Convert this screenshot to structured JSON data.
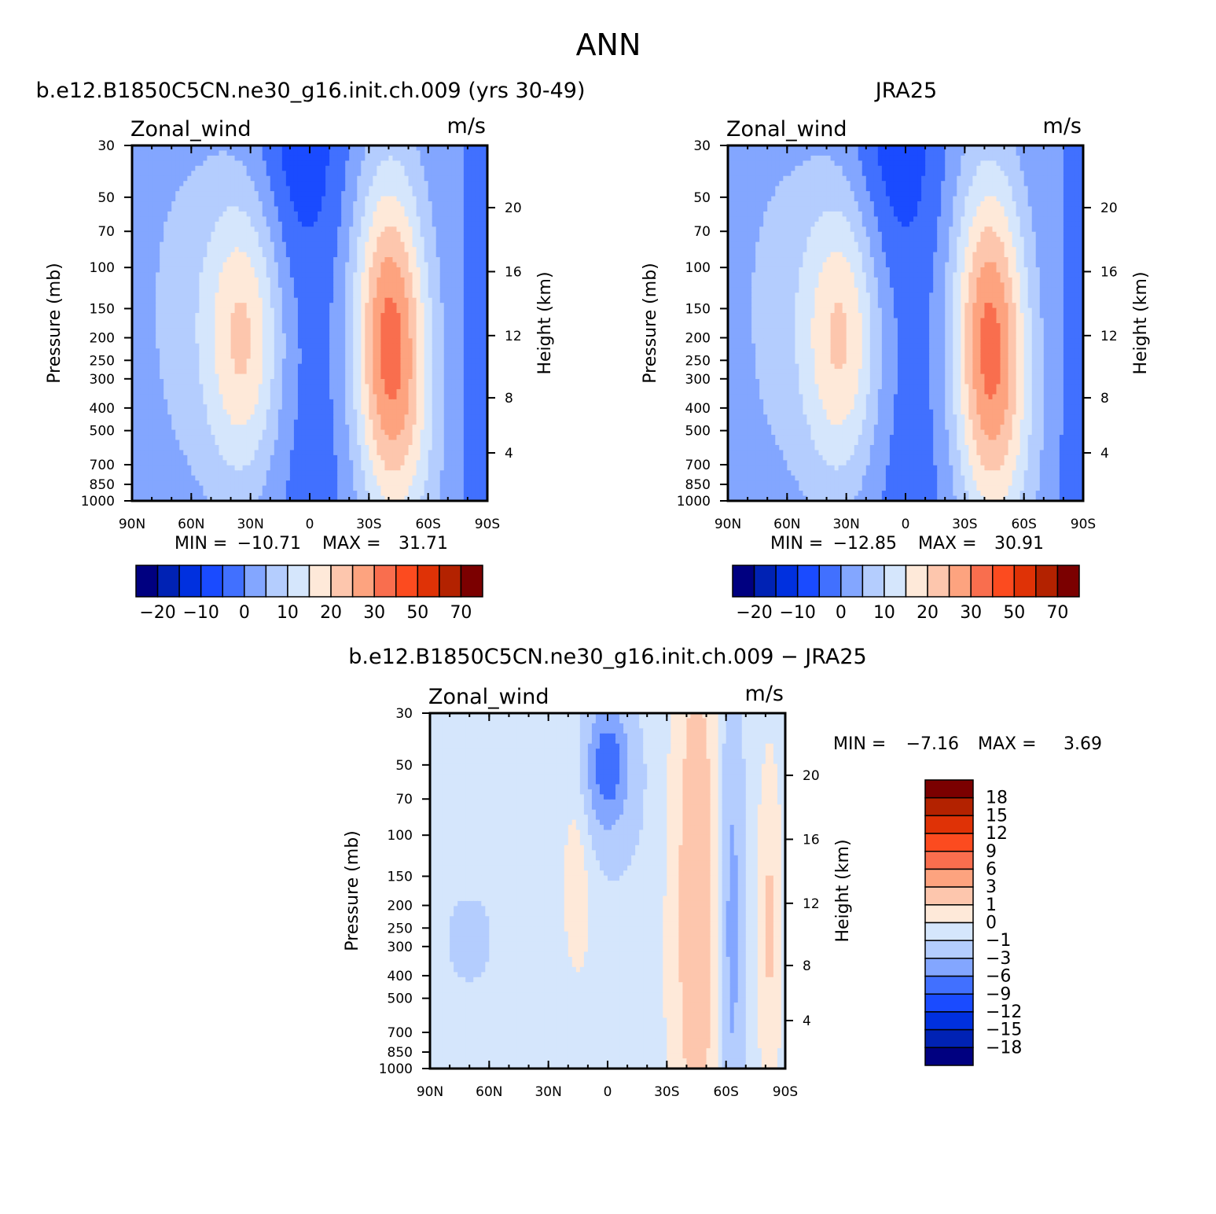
{
  "title": "ANN",
  "colors": {
    "full_palette": [
      "#000080",
      "#0022b4",
      "#0030df",
      "#1a4bff",
      "#4170ff",
      "#83a6ff",
      "#b4cdfe",
      "#d5e6fc",
      "#fee9d9",
      "#fdc6ad",
      "#fda37f",
      "#f96e4e",
      "#fc4b1f",
      "#df3206",
      "#b32200",
      "#7b0000"
    ],
    "diff_palette": [
      "#000080",
      "#0022b4",
      "#0030df",
      "#1a4bff",
      "#4170ff",
      "#83a6ff",
      "#b4cdfe",
      "#d5e6fc",
      "#fee9d9",
      "#fdc6ad",
      "#fda37f",
      "#f96e4e",
      "#fc4b1f",
      "#df3206",
      "#b32200",
      "#7b0000"
    ]
  },
  "chart_data": [
    {
      "type": "heatmap",
      "title": "b.e12.B1850C5CN.ne30_g16.init.ch.009 (yrs 30-49)",
      "left_label": "Zonal_wind",
      "right_label": "m/s",
      "ylabel": "Pressure (mb)",
      "y2label": "Height (km)",
      "x_ticks": [
        "90N",
        "60N",
        "30N",
        "0",
        "30S",
        "60S",
        "90S"
      ],
      "y_ticks": [
        "30",
        "50",
        "70",
        "100",
        "150",
        "200",
        "250",
        "300",
        "400",
        "500",
        "700",
        "850",
        "1000"
      ],
      "y2_ticks": [
        "20",
        "16",
        "12",
        "8",
        "4"
      ],
      "y_scale": "log",
      "stats": {
        "min_label": "MIN =",
        "min": "−10.71",
        "max_label": "MAX =",
        "max": "31.71"
      },
      "colorbar": {
        "orientation": "horizontal",
        "labels": [
          "−20",
          "−10",
          "0",
          "10",
          "20",
          "30",
          "50",
          "70"
        ]
      },
      "features": {
        "nh_jet_core_lat": 33,
        "nh_jet_core_pressure": 200,
        "nh_jet_peak": 20,
        "sh_jet_core_lat": -40,
        "sh_jet_core_pressure": 200,
        "sh_jet_peak": 31.71,
        "tropical_easterly_min": -10.71
      }
    },
    {
      "type": "heatmap",
      "title": "JRA25",
      "left_label": "Zonal_wind",
      "right_label": "m/s",
      "ylabel": "Pressure (mb)",
      "y2label": "Height (km)",
      "x_ticks": [
        "90N",
        "60N",
        "30N",
        "0",
        "30S",
        "60S",
        "90S"
      ],
      "y_ticks": [
        "30",
        "50",
        "70",
        "100",
        "150",
        "200",
        "250",
        "300",
        "400",
        "500",
        "700",
        "850",
        "1000"
      ],
      "y2_ticks": [
        "20",
        "16",
        "12",
        "8",
        "4"
      ],
      "y_scale": "log",
      "stats": {
        "min_label": "MIN =",
        "min": "−12.85",
        "max_label": "MAX =",
        "max": "30.91"
      },
      "colorbar": {
        "orientation": "horizontal",
        "labels": [
          "−20",
          "−10",
          "0",
          "10",
          "20",
          "30",
          "50",
          "70"
        ]
      },
      "features": {
        "nh_jet_core_lat": 32,
        "nh_jet_core_pressure": 200,
        "nh_jet_peak": 20,
        "sh_jet_core_lat": -42,
        "sh_jet_core_pressure": 200,
        "sh_jet_peak": 30.91,
        "tropical_easterly_min": -12.85
      }
    },
    {
      "type": "heatmap",
      "title": "b.e12.B1850C5CN.ne30_g16.init.ch.009 − JRA25",
      "left_label": "Zonal_wind",
      "right_label": "m/s",
      "ylabel": "Pressure (mb)",
      "y2label": "Height (km)",
      "x_ticks": [
        "90N",
        "60N",
        "30N",
        "0",
        "30S",
        "60S",
        "90S"
      ],
      "y_ticks": [
        "30",
        "50",
        "70",
        "100",
        "150",
        "200",
        "250",
        "300",
        "400",
        "500",
        "700",
        "850",
        "1000"
      ],
      "y2_ticks": [
        "20",
        "16",
        "12",
        "8",
        "4"
      ],
      "y_scale": "log",
      "stats": {
        "min_label": "MIN =",
        "min": "−7.16",
        "max_label": "MAX =",
        "max": "3.69"
      },
      "colorbar": {
        "orientation": "vertical",
        "labels": [
          "18",
          "15",
          "12",
          "9",
          "6",
          "3",
          "1",
          "0",
          "−1",
          "−3",
          "−6",
          "−9",
          "−12",
          "−15",
          "−18"
        ]
      },
      "features": {
        "equatorial_min_lat": 0,
        "equatorial_min_pressure": 50,
        "equatorial_min": -7.16,
        "sh_positive_band_lat": -45,
        "sh_positive_max": 3.69
      }
    }
  ]
}
